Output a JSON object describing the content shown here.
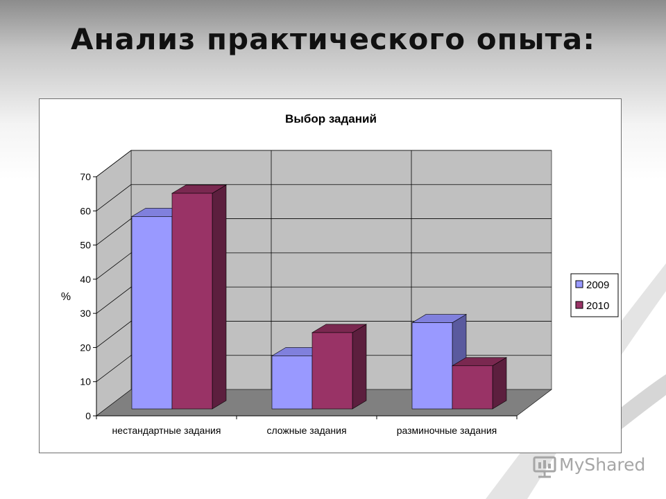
{
  "slide": {
    "title": "Анализ практического опыта:"
  },
  "chart_data": {
    "type": "bar",
    "title": "Выбор заданий",
    "ylabel": "%",
    "xlabel": "",
    "categories": [
      "нестандартные задания",
      "сложные задания",
      "разминочные задания"
    ],
    "series": [
      {
        "name": "2009",
        "values": [
          58,
          16,
          26
        ],
        "color": "#9999ff",
        "top": "#8080dd",
        "side": "#5a5a9e"
      },
      {
        "name": "2010",
        "values": [
          65,
          23,
          13
        ],
        "color": "#993366",
        "top": "#7a2850",
        "side": "#5c1f3e"
      }
    ],
    "ylim": [
      0,
      70
    ],
    "yticks": [
      0,
      10,
      20,
      30,
      40,
      50,
      60,
      70
    ],
    "grid": true,
    "legend": "right",
    "wall_color": "#c0c0c0",
    "floor_color": "#808080"
  },
  "watermark": {
    "text": "MyShared",
    "icon": "presentation-icon"
  }
}
